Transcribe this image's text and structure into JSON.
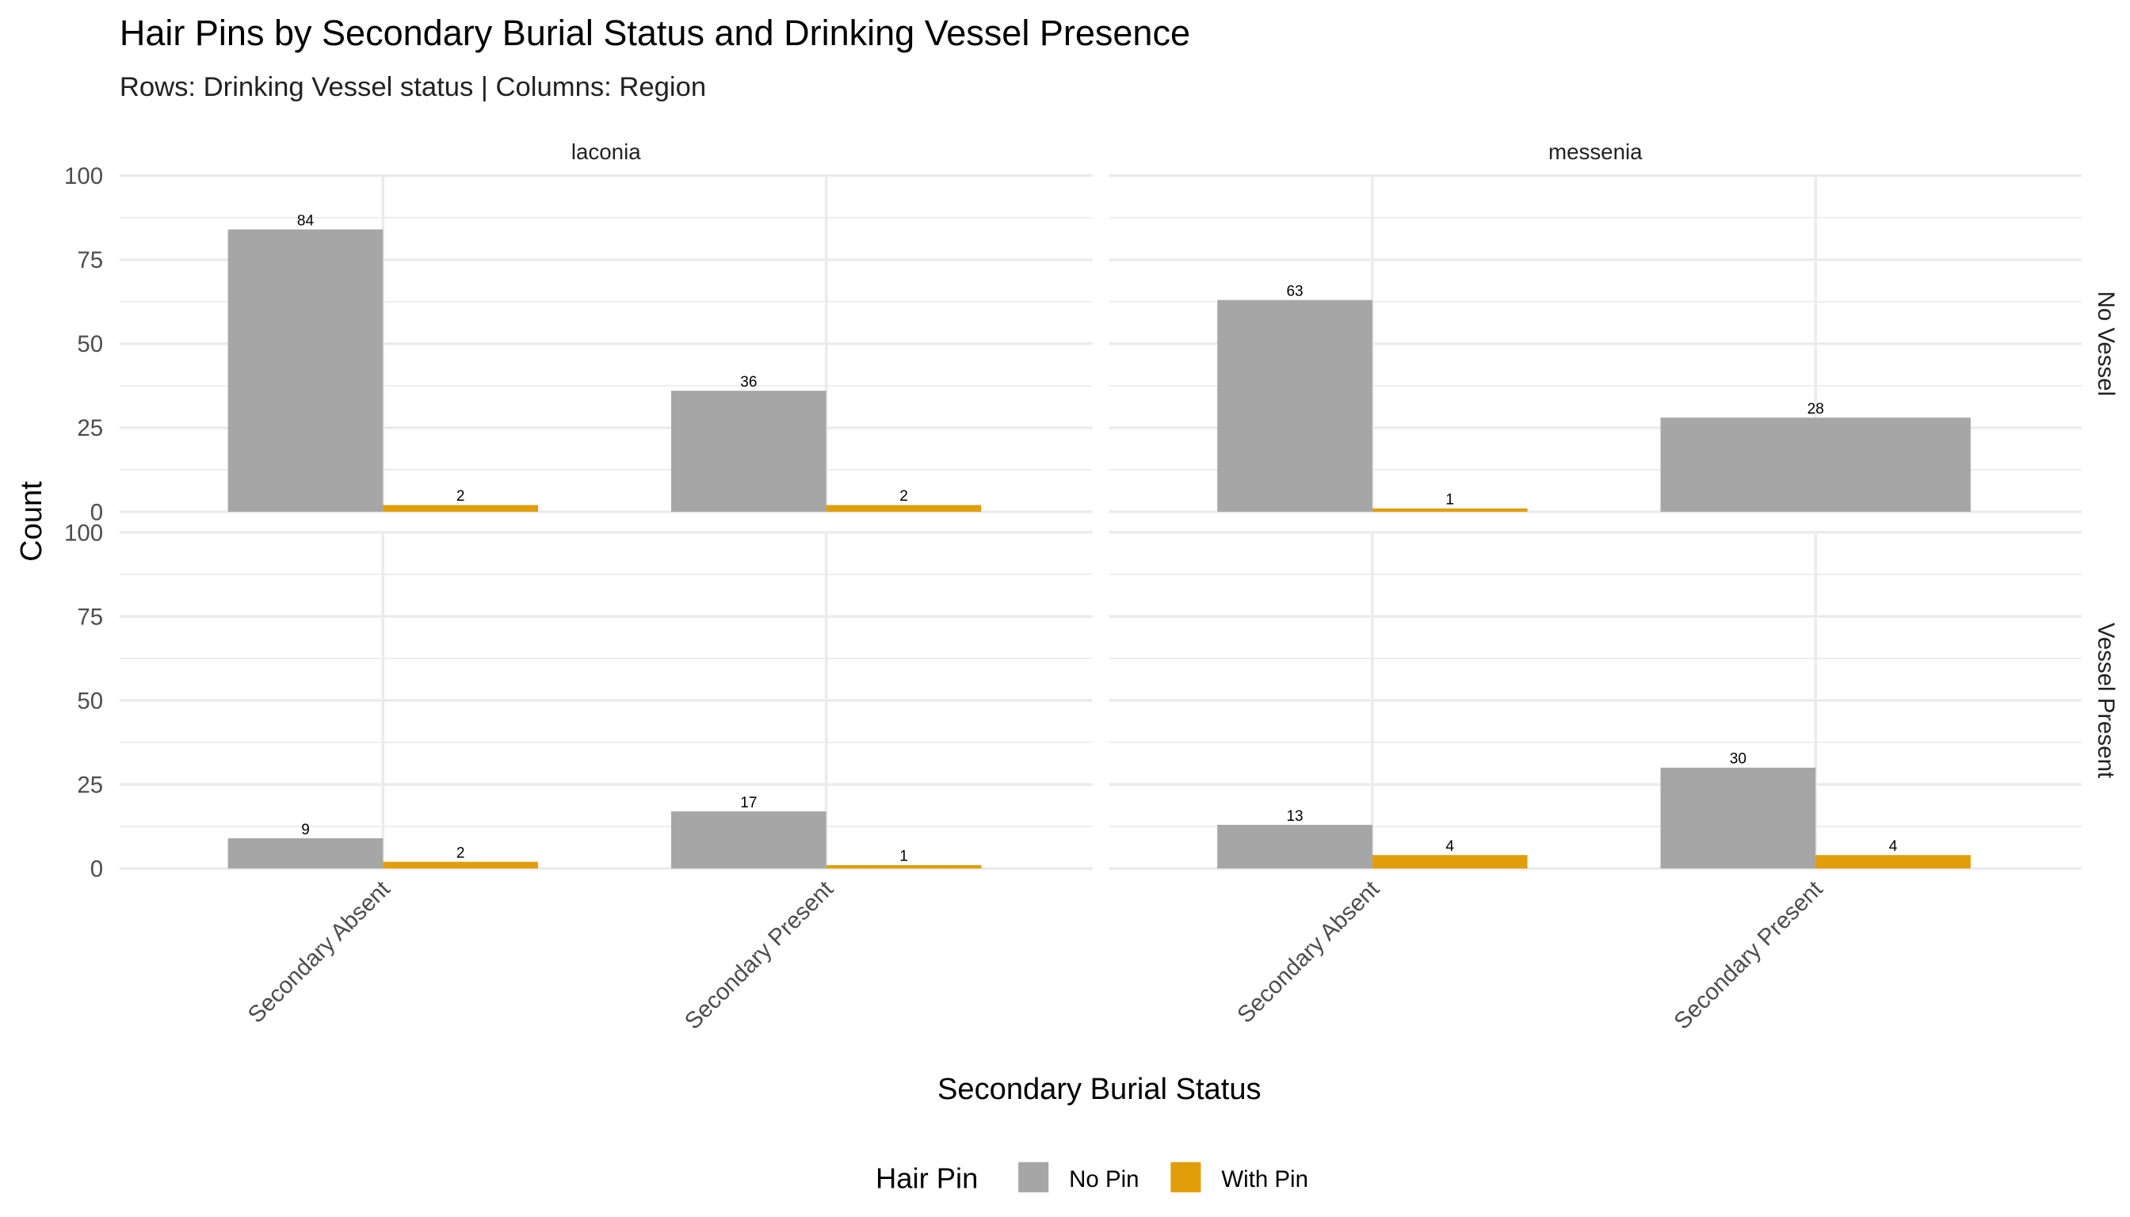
{
  "chart_data": {
    "type": "bar",
    "title": "Hair Pins by Secondary Burial Status and Drinking Vessel Presence",
    "subtitle": "Rows: Drinking Vessel status | Columns: Region",
    "xlabel": "Secondary Burial Status",
    "ylabel": "Count",
    "ylim": [
      0,
      100
    ],
    "yticks": [
      "0",
      "25",
      "50",
      "75",
      "100"
    ],
    "categories": [
      "Secondary Absent",
      "Secondary Present"
    ],
    "columns": [
      "laconia",
      "messenia"
    ],
    "rows": [
      "No Vessel",
      "Vessel Present"
    ],
    "legend": {
      "title": "Hair Pin",
      "position": "bottom",
      "entries": [
        {
          "name": "No Pin",
          "color": "#A6A6A6"
        },
        {
          "name": "With Pin",
          "color": "#E09F0A"
        }
      ]
    },
    "grid": true,
    "panels": [
      {
        "row": "No Vessel",
        "column": "laconia",
        "series": [
          {
            "name": "No Pin",
            "values": [
              84,
              36
            ]
          },
          {
            "name": "With Pin",
            "values": [
              2,
              2
            ]
          }
        ]
      },
      {
        "row": "No Vessel",
        "column": "messenia",
        "series": [
          {
            "name": "No Pin",
            "values": [
              63,
              28
            ]
          },
          {
            "name": "With Pin",
            "values": [
              1,
              null
            ]
          }
        ]
      },
      {
        "row": "Vessel Present",
        "column": "laconia",
        "series": [
          {
            "name": "No Pin",
            "values": [
              9,
              17
            ]
          },
          {
            "name": "With Pin",
            "values": [
              2,
              1
            ]
          }
        ]
      },
      {
        "row": "Vessel Present",
        "column": "messenia",
        "series": [
          {
            "name": "No Pin",
            "values": [
              13,
              30
            ]
          },
          {
            "name": "With Pin",
            "values": [
              4,
              4
            ]
          }
        ]
      }
    ]
  }
}
